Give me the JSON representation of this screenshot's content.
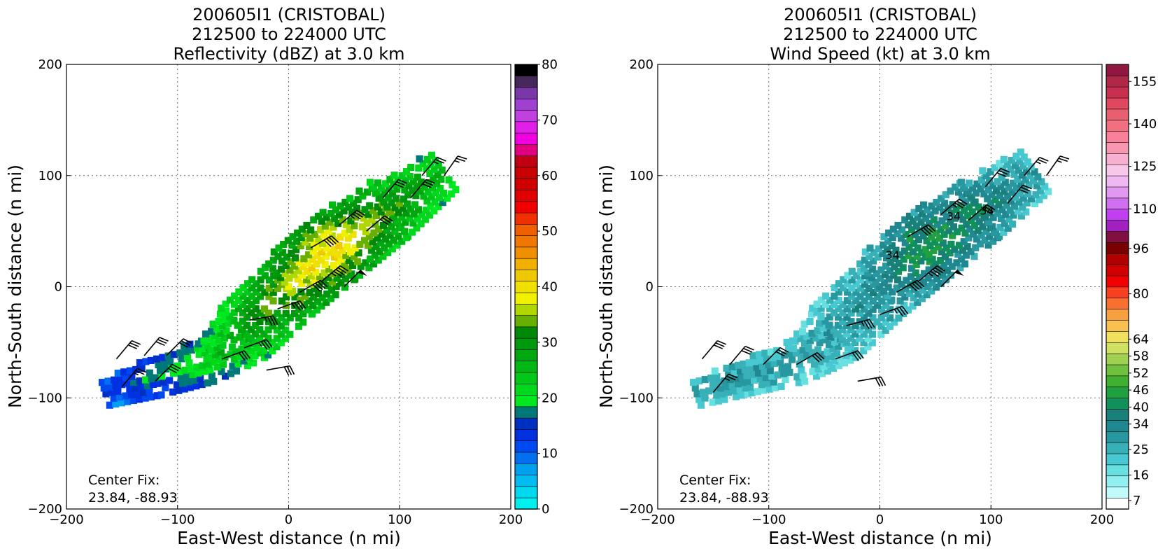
{
  "figure": {
    "panels": [
      {
        "id": "reflectivity",
        "title_lines": [
          "200605I1 (CRISTOBAL)",
          "212500 to 224000 UTC",
          "Reflectivity (dBZ) at 3.0 km"
        ],
        "center_fix_label": "Center Fix:",
        "center_fix_value": "23.84, -88.93",
        "colorbar": {
          "min": 0,
          "max": 80,
          "tick_values": [
            0,
            10,
            20,
            30,
            40,
            50,
            60,
            70,
            80
          ],
          "tick_labels": [
            "0",
            "10",
            "20",
            "30",
            "40",
            "50",
            "60",
            "70",
            "80"
          ],
          "colors": [
            "#00f0f0",
            "#00d8f0",
            "#00bcf0",
            "#00a0f0",
            "#0070f0",
            "#0048f0",
            "#0030e0",
            "#0030c0",
            "#007878",
            "#00e820",
            "#00d81c",
            "#00c818",
            "#00b814",
            "#00a810",
            "#00980c",
            "#008808",
            "#68b000",
            "#b0d800",
            "#f0f000",
            "#f0e000",
            "#f0c800",
            "#f0b000",
            "#f09000",
            "#f07800",
            "#f06000",
            "#f03000",
            "#f00000",
            "#e00000",
            "#d00000",
            "#c80000",
            "#c00010",
            "#e00080",
            "#f000e0",
            "#e020e8",
            "#c040e0",
            "#a040d0",
            "#7838a8",
            "#482858",
            "#000000"
          ]
        },
        "axes": {
          "xlabel": "East-West distance (n mi)",
          "ylabel": "North-South distance (n mi)",
          "xlim": [
            -200,
            200
          ],
          "ylim": [
            -200,
            200
          ],
          "xticks": [
            -200,
            -100,
            0,
            100,
            200
          ],
          "xtick_labels": [
            "−200",
            "−100",
            "0",
            "100",
            "200"
          ],
          "yticks": [
            -200,
            -100,
            0,
            100,
            200
          ],
          "ytick_labels": [
            "−200",
            "−100",
            "0",
            "100",
            "200"
          ],
          "grid": true
        }
      },
      {
        "id": "windspeed",
        "title_lines": [
          "200605I1 (CRISTOBAL)",
          "212500 to 224000 UTC",
          "Wind Speed (kt) at 3.0 km"
        ],
        "center_fix_label": "Center Fix:",
        "center_fix_value": "23.84, -88.93",
        "colorbar": {
          "min": 4,
          "max": 161,
          "tick_values": [
            7,
            16,
            25,
            34,
            40,
            46,
            52,
            58,
            64,
            80,
            96,
            110,
            125,
            140,
            155
          ],
          "tick_labels": [
            "7",
            "16",
            "25",
            "34",
            "40",
            "46",
            "52",
            "58",
            "64",
            "80",
            "96",
            "110",
            "125",
            "140",
            "155"
          ],
          "colors": [
            "#ffffff",
            "#c0fafa",
            "#90f0f0",
            "#68e0e0",
            "#48c8d0",
            "#38b0b8",
            "#2898a0",
            "#208890",
            "#188078",
            "#10905a",
            "#20a040",
            "#40b030",
            "#70c040",
            "#a0d050",
            "#d0e060",
            "#f0e060",
            "#f8c050",
            "#f8a040",
            "#f87030",
            "#f84020",
            "#f00000",
            "#d00000",
            "#b00000",
            "#780000",
            "#801040",
            "#a020c0",
            "#c040f0",
            "#d070f0",
            "#e098f0",
            "#f0b8f0",
            "#f8c8e8",
            "#f8b0d0",
            "#f898b0",
            "#f88098",
            "#f07080",
            "#e86070",
            "#e04860",
            "#c83050",
            "#b02848",
            "#901840"
          ]
        },
        "axes": {
          "xlabel": "East-West distance (n mi)",
          "ylabel": "North-South distance (n mi)",
          "xlim": [
            -200,
            200
          ],
          "ylim": [
            -200,
            200
          ],
          "xticks": [
            -200,
            -100,
            0,
            100,
            200
          ],
          "xtick_labels": [
            "−200",
            "−100",
            "0",
            "100",
            "200"
          ],
          "yticks": [
            -200,
            -100,
            0,
            100,
            200
          ],
          "ytick_labels": [
            "−200",
            "−100",
            "0",
            "100",
            "200"
          ],
          "grid": true
        },
        "contour_labels": [
          "34",
          "34",
          "34"
        ]
      }
    ]
  },
  "chart_data": [
    {
      "type": "heatmap",
      "title": "200605I1 (CRISTOBAL) 212500 to 224000 UTC Reflectivity (dBZ) at 3.0 km",
      "xlabel": "East-West distance (n mi)",
      "ylabel": "North-South distance (n mi)",
      "xlim": [
        -200,
        200
      ],
      "ylim": [
        -200,
        200
      ],
      "colorbar_range": [
        0,
        80
      ],
      "units": "dBZ",
      "band_centerline": [
        [
          -165,
          -95
        ],
        [
          -120,
          -80
        ],
        [
          -70,
          -65
        ],
        [
          -40,
          -40
        ],
        [
          0,
          0
        ],
        [
          40,
          35
        ],
        [
          90,
          70
        ],
        [
          140,
          105
        ]
      ],
      "band_half_width": [
        12,
        18,
        20,
        30,
        32,
        34,
        30,
        20
      ],
      "band_values": [
        12,
        16,
        22,
        26,
        34,
        38,
        30,
        24
      ],
      "wind_barbs": [
        {
          "x": -155,
          "y": -65,
          "dir_from": 40,
          "speed_kt": 30
        },
        {
          "x": -130,
          "y": -62,
          "dir_from": 40,
          "speed_kt": 30
        },
        {
          "x": -110,
          "y": -62,
          "dir_from": 45,
          "speed_kt": 30
        },
        {
          "x": -150,
          "y": -90,
          "dir_from": 40,
          "speed_kt": 25
        },
        {
          "x": -120,
          "y": -85,
          "dir_from": 45,
          "speed_kt": 30
        },
        {
          "x": -60,
          "y": -65,
          "dir_from": 70,
          "speed_kt": 30
        },
        {
          "x": -40,
          "y": -55,
          "dir_from": 70,
          "speed_kt": 35
        },
        {
          "x": -20,
          "y": -75,
          "dir_from": 80,
          "speed_kt": 30
        },
        {
          "x": -35,
          "y": -30,
          "dir_from": 80,
          "speed_kt": 35
        },
        {
          "x": -10,
          "y": -20,
          "dir_from": 70,
          "speed_kt": 35
        },
        {
          "x": 10,
          "y": -5,
          "dir_from": 60,
          "speed_kt": 40
        },
        {
          "x": 30,
          "y": 5,
          "dir_from": 50,
          "speed_kt": 45
        },
        {
          "x": 50,
          "y": 0,
          "dir_from": 45,
          "speed_kt": 50
        },
        {
          "x": 20,
          "y": 35,
          "dir_from": 60,
          "speed_kt": 40
        },
        {
          "x": 45,
          "y": 55,
          "dir_from": 50,
          "speed_kt": 35
        },
        {
          "x": 70,
          "y": 50,
          "dir_from": 50,
          "speed_kt": 30
        },
        {
          "x": 85,
          "y": 80,
          "dir_from": 40,
          "speed_kt": 30
        },
        {
          "x": 110,
          "y": 80,
          "dir_from": 40,
          "speed_kt": 30
        },
        {
          "x": 120,
          "y": 100,
          "dir_from": 40,
          "speed_kt": 25
        },
        {
          "x": 140,
          "y": 100,
          "dir_from": 35,
          "speed_kt": 25
        }
      ]
    },
    {
      "type": "heatmap",
      "title": "200605I1 (CRISTOBAL) 212500 to 224000 UTC Wind Speed (kt) at 3.0 km",
      "xlabel": "East-West distance (n mi)",
      "ylabel": "North-South distance (n mi)",
      "xlim": [
        -200,
        200
      ],
      "ylim": [
        -200,
        200
      ],
      "colorbar_range": [
        4,
        161
      ],
      "units": "kt",
      "band_centerline": [
        [
          -165,
          -95
        ],
        [
          -120,
          -80
        ],
        [
          -70,
          -65
        ],
        [
          -40,
          -40
        ],
        [
          0,
          0
        ],
        [
          40,
          35
        ],
        [
          90,
          70
        ],
        [
          140,
          105
        ]
      ],
      "band_half_width": [
        12,
        16,
        20,
        30,
        32,
        34,
        30,
        22
      ],
      "band_values": [
        28,
        28,
        26,
        27,
        30,
        42,
        36,
        26
      ],
      "wind_barbs": [
        {
          "x": -160,
          "y": -65,
          "dir_from": 40,
          "speed_kt": 30
        },
        {
          "x": -135,
          "y": -70,
          "dir_from": 40,
          "speed_kt": 30
        },
        {
          "x": -105,
          "y": -70,
          "dir_from": 45,
          "speed_kt": 30
        },
        {
          "x": -150,
          "y": -95,
          "dir_from": 40,
          "speed_kt": 25
        },
        {
          "x": -75,
          "y": -70,
          "dir_from": 60,
          "speed_kt": 30
        },
        {
          "x": -40,
          "y": -65,
          "dir_from": 70,
          "speed_kt": 30
        },
        {
          "x": -20,
          "y": -85,
          "dir_from": 80,
          "speed_kt": 30
        },
        {
          "x": -30,
          "y": -35,
          "dir_from": 75,
          "speed_kt": 35
        },
        {
          "x": 0,
          "y": -25,
          "dir_from": 70,
          "speed_kt": 35
        },
        {
          "x": 15,
          "y": -5,
          "dir_from": 60,
          "speed_kt": 40
        },
        {
          "x": 35,
          "y": 5,
          "dir_from": 50,
          "speed_kt": 45
        },
        {
          "x": 55,
          "y": 0,
          "dir_from": 45,
          "speed_kt": 50
        },
        {
          "x": 25,
          "y": 45,
          "dir_from": 60,
          "speed_kt": 40
        },
        {
          "x": 55,
          "y": 65,
          "dir_from": 50,
          "speed_kt": 35
        },
        {
          "x": 80,
          "y": 60,
          "dir_from": 50,
          "speed_kt": 30
        },
        {
          "x": 95,
          "y": 90,
          "dir_from": 40,
          "speed_kt": 30
        },
        {
          "x": 115,
          "y": 75,
          "dir_from": 40,
          "speed_kt": 30
        },
        {
          "x": 130,
          "y": 100,
          "dir_from": 40,
          "speed_kt": 25
        },
        {
          "x": 150,
          "y": 100,
          "dir_from": 35,
          "speed_kt": 25
        }
      ],
      "contour_34kt_labels": [
        [
          5,
          25
        ],
        [
          60,
          60
        ],
        [
          90,
          65
        ]
      ]
    }
  ]
}
